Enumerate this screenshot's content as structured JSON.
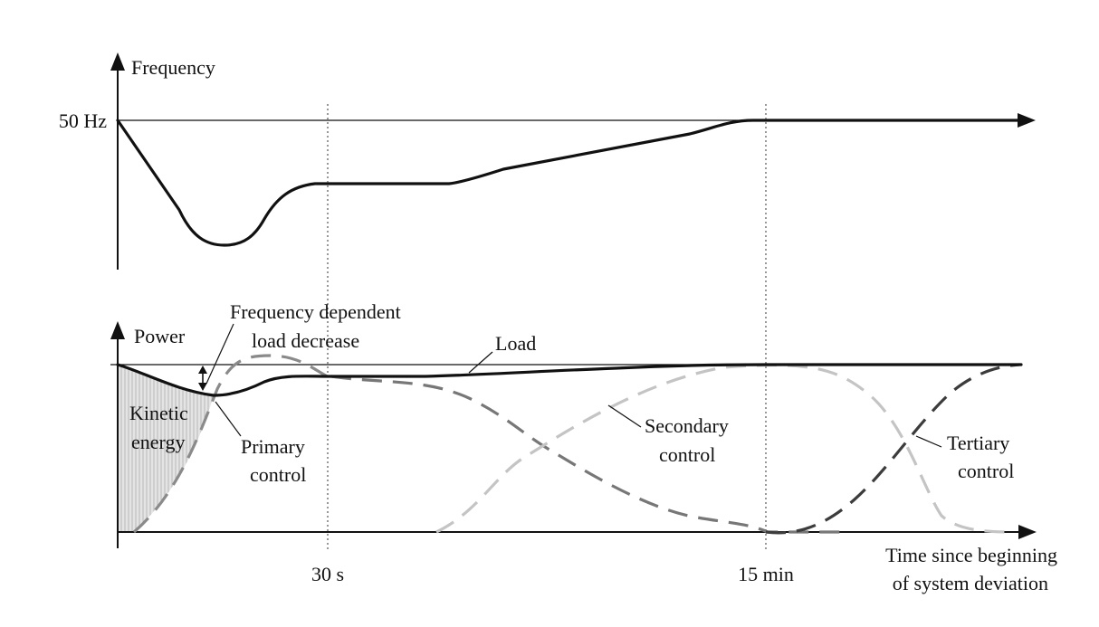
{
  "frequency_panel": {
    "axis_label": "Frequency",
    "level_label": "50 Hz"
  },
  "power_panel": {
    "axis_label": "Power",
    "annotations": {
      "freq_dependent_line1": "Frequency dependent",
      "freq_dependent_line2": "load decrease",
      "load": "Load",
      "kinetic_line1": "Kinetic",
      "kinetic_line2": "energy",
      "primary_line1": "Primary",
      "primary_line2": "control",
      "secondary_line1": "Secondary",
      "secondary_line2": "control",
      "tertiary_line1": "Tertiary",
      "tertiary_line2": "control"
    }
  },
  "time_axis": {
    "tick_30s": "30 s",
    "tick_15min": "15 min",
    "label_line1": "Time since beginning",
    "label_line2": "of system deviation"
  },
  "colors": {
    "load_curve": "#111111",
    "primary_control": "#8a8a8a",
    "secondary_control": "#777777",
    "tertiary_control": "#3c3c3c",
    "kinetic_fill": "#d9d9d9"
  }
}
